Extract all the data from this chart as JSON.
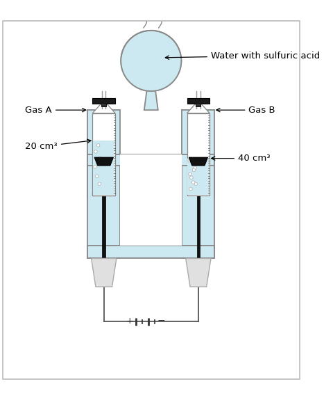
{
  "bg_color": "#ffffff",
  "water_color": "#cce8f0",
  "glass_edge": "#888888",
  "electrode_color": "#111111",
  "plug_color": "#d8d8d8",
  "label_gas_a": "Gas A",
  "label_gas_b": "Gas B",
  "label_vol_a": "20 cm³",
  "label_vol_b": "40 cm³",
  "label_flask": "Water with sulfuric acid",
  "label_plus": "+",
  "label_minus": "−",
  "annotation_fontsize": 9.5
}
